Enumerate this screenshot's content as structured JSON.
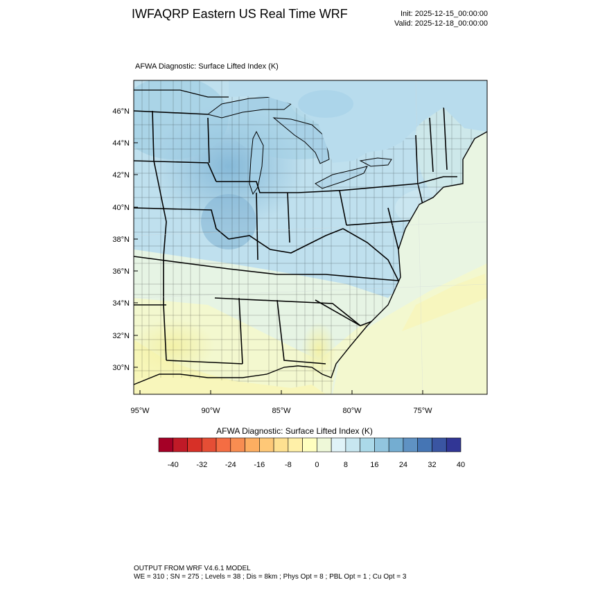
{
  "header": {
    "title": "IWFAQRP Eastern US Real Time WRF",
    "init": "Init: 2025-12-15_00:00:00",
    "valid": "Valid: 2025-12-18_00:00:00"
  },
  "map": {
    "field_label": "AFWA Diagnostic: Surface Lifted Index   (K)",
    "lat_labels": [
      "46°N",
      "44°N",
      "42°N",
      "40°N",
      "38°N",
      "36°N",
      "34°N",
      "32°N",
      "30°N"
    ],
    "lon_labels": [
      "95°W",
      "90°W",
      "85°W",
      "80°W",
      "75°W"
    ]
  },
  "colorbar": {
    "title": "AFWA Diagnostic: Surface Lifted Index  (K)",
    "labels": [
      "-40",
      "-32",
      "-24",
      "-16",
      "-8",
      "0",
      "8",
      "16",
      "24",
      "32",
      "40"
    ],
    "colors": [
      "#a50026",
      "#c01a27",
      "#d73027",
      "#e54e35",
      "#f46d43",
      "#f88d51",
      "#fdae61",
      "#fec877",
      "#fee090",
      "#fff0a8",
      "#ffffbf",
      "#eef8d8",
      "#e0f3f8",
      "#c7e6f0",
      "#abd9e9",
      "#92c5de",
      "#74add1",
      "#5f92c3",
      "#4575b4",
      "#3a55a2",
      "#313695"
    ]
  },
  "footer": {
    "line1": "OUTPUT FROM WRF V4.6.1 MODEL",
    "line2": "WE = 310 ; SN = 275 ; Levels = 38 ; Dis = 8km ; Phys Opt = 8 ; PBL Opt = 1 ; Cu Opt = 3"
  }
}
